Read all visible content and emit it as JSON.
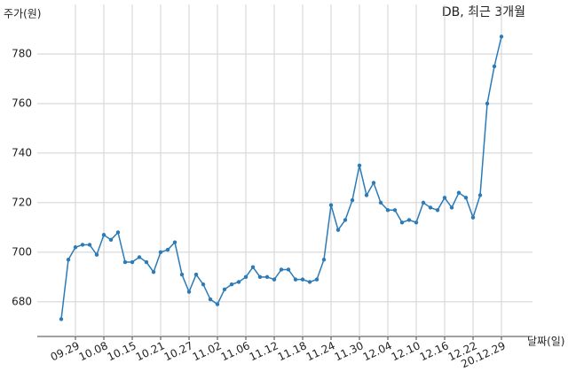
{
  "chart_data": {
    "type": "line",
    "title": "DB, 최근 3개월",
    "y_label": "주가(원)",
    "x_label": "날짜(일)",
    "categories": [
      null,
      null,
      "09.29",
      null,
      null,
      null,
      "10.08",
      null,
      null,
      null,
      "10.15",
      null,
      null,
      null,
      "10.21",
      null,
      null,
      null,
      "10.27",
      null,
      null,
      null,
      "11.02",
      null,
      null,
      null,
      "11.06",
      null,
      null,
      null,
      "11.12",
      null,
      null,
      null,
      "11.18",
      null,
      null,
      null,
      "11.24",
      null,
      null,
      null,
      "11.30",
      null,
      null,
      null,
      "12.04",
      null,
      null,
      null,
      "12.10",
      null,
      null,
      null,
      "12.16",
      null,
      null,
      null,
      "12.22",
      null,
      null,
      null,
      "20.12.29"
    ],
    "values": [
      673,
      697,
      702,
      703,
      703,
      699,
      707,
      705,
      708,
      696,
      696,
      698,
      696,
      692,
      700,
      701,
      704,
      691,
      684,
      691,
      687,
      681,
      679,
      685,
      687,
      688,
      690,
      694,
      690,
      690,
      689,
      693,
      693,
      689,
      689,
      688,
      689,
      697,
      719,
      709,
      713,
      721,
      735,
      723,
      728,
      720,
      717,
      717,
      712,
      713,
      712,
      720,
      718,
      717,
      722,
      718,
      724,
      722,
      714,
      723,
      760,
      775,
      787
    ],
    "color": "#2b7bb9",
    "ylim": [
      666,
      800
    ],
    "yticks": [
      680,
      700,
      720,
      740,
      760,
      780
    ],
    "grid": true
  }
}
